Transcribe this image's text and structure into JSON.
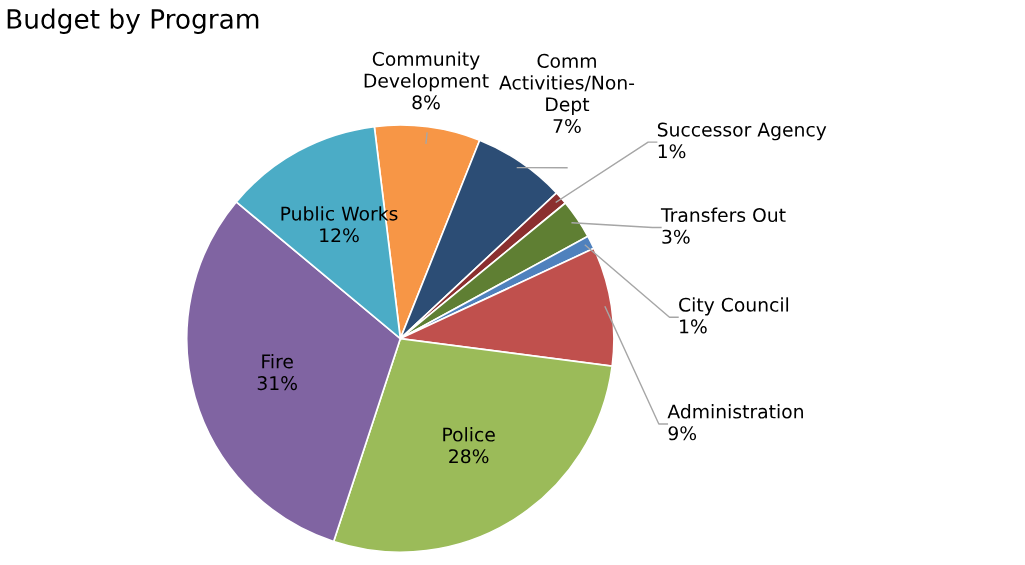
{
  "chart_data": {
    "type": "pie",
    "title": "Budget by Program",
    "categories": [
      "Community\nDevelopment",
      "Comm\nActivities/Non-\nDept",
      "Successor Agency",
      "Transfers Out",
      "City Council",
      "Administration",
      "Police",
      "Fire",
      "Public Works"
    ],
    "values": [
      8,
      7,
      1,
      3,
      1,
      9,
      28,
      31,
      12
    ],
    "value_labels": [
      "8%",
      "7%",
      "1%",
      "3%",
      "1%",
      "9%",
      "28%",
      "31%",
      "12%"
    ],
    "colors": [
      "#f79646",
      "#2c4d75",
      "#8b2f2f",
      "#5f7f33",
      "#4f81bd",
      "#c0504d",
      "#9bbb59",
      "#8064a2",
      "#4bacc6"
    ],
    "legend": false
  }
}
